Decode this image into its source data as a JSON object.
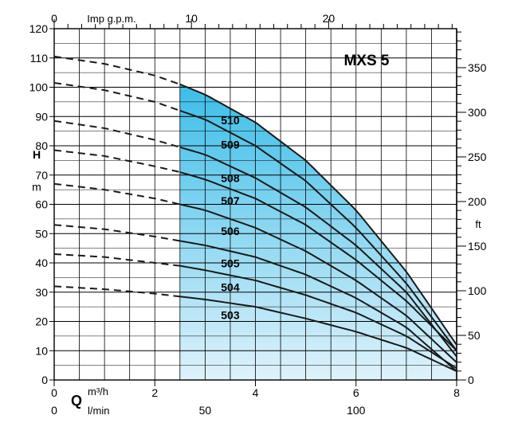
{
  "chart_data": {
    "type": "line",
    "title": "MXS 5",
    "x_axis": {
      "label": "Q",
      "unit_m3h": "m³/h",
      "unit_lmin": "l/min",
      "range": [
        0,
        8
      ],
      "ticks_m3h": [
        0,
        2,
        4,
        6,
        8
      ],
      "ticks_lmin": [
        0,
        50,
        100
      ],
      "top_unit": "Imp g.p.m.",
      "ticks_imp_gpm": [
        0,
        10,
        20
      ]
    },
    "y_axis": {
      "label_letter": "H",
      "label_unit": "m",
      "range": [
        0,
        120
      ],
      "ticks": [
        0,
        10,
        20,
        30,
        40,
        50,
        60,
        70,
        80,
        90,
        100,
        110,
        120
      ],
      "right_unit": "ft",
      "right_ticks": [
        0,
        50,
        100,
        150,
        200,
        250,
        300,
        350
      ]
    },
    "operating_range": [
      2.5,
      8
    ],
    "grid": true,
    "series": [
      {
        "name": "510",
        "q": [
          0,
          1,
          2,
          2.5,
          3,
          4,
          5,
          6,
          7,
          8
        ],
        "h": [
          110.5,
          108,
          104,
          101,
          97.5,
          88,
          75,
          58,
          37,
          12
        ]
      },
      {
        "name": "509",
        "q": [
          0,
          1,
          2,
          2.5,
          3,
          4,
          5,
          6,
          7,
          8
        ],
        "h": [
          101.5,
          99,
          95,
          92,
          89,
          80,
          68,
          52,
          33,
          10
        ]
      },
      {
        "name": "508",
        "q": [
          0,
          1,
          2,
          2.5,
          3,
          4,
          5,
          6,
          7,
          8
        ],
        "h": [
          88.5,
          86,
          82,
          79.5,
          77,
          69,
          59,
          46,
          30,
          8
        ]
      },
      {
        "name": "507",
        "q": [
          0,
          1,
          2,
          2.5,
          3,
          4,
          5,
          6,
          7,
          8
        ],
        "h": [
          78.5,
          76.5,
          73,
          71,
          68.5,
          62,
          53,
          41,
          27,
          10
        ]
      },
      {
        "name": "506",
        "q": [
          0,
          1,
          2,
          2.5,
          3,
          4,
          5,
          6,
          7,
          8
        ],
        "h": [
          67,
          65,
          62,
          60,
          58,
          52,
          44,
          34,
          22,
          6
        ]
      },
      {
        "name": "505",
        "q": [
          0,
          1,
          2,
          2.5,
          3,
          4,
          5,
          6,
          7,
          8
        ],
        "h": [
          53,
          51.5,
          49,
          47.5,
          46,
          42,
          36,
          28,
          18,
          3
        ]
      },
      {
        "name": "504",
        "q": [
          0,
          1,
          2,
          2.5,
          3,
          4,
          5,
          6,
          7,
          8
        ],
        "h": [
          43,
          42,
          40,
          39,
          37.5,
          34,
          29,
          23,
          15,
          4
        ]
      },
      {
        "name": "503",
        "q": [
          0,
          1,
          2,
          2.5,
          3,
          4,
          5,
          6,
          7,
          8
        ],
        "h": [
          32,
          31,
          29.5,
          28.5,
          27.5,
          25,
          21,
          16.5,
          11,
          3
        ]
      }
    ],
    "colors": {
      "fill_top": "#3cbde8",
      "fill_bottom": "#dff2fb",
      "grid": "#000000",
      "curve": "#1a1a1a"
    }
  }
}
